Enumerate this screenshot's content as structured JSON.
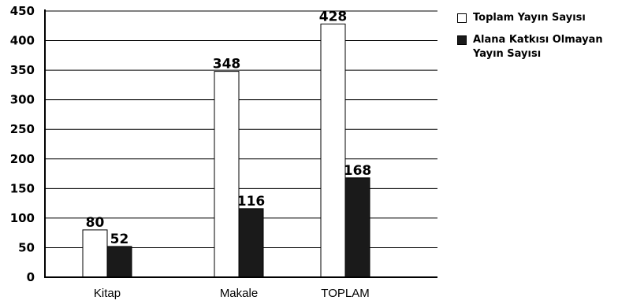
{
  "chart_data": {
    "type": "bar",
    "categories": [
      "Kitap",
      "Makale",
      "TOPLAM"
    ],
    "series": [
      {
        "name": "Toplam Yayın Sayısı",
        "values": [
          80,
          348,
          428
        ],
        "color": "#ffffff"
      },
      {
        "name": "Alana Katkısı Olmayan Yayın Sayısı",
        "values": [
          52,
          116,
          168
        ],
        "color": "#1a1a1a"
      }
    ],
    "data_labels": [
      [
        "80",
        "348",
        "428"
      ],
      [
        "52",
        "116",
        "168"
      ]
    ],
    "yticks": [
      0,
      50,
      100,
      150,
      200,
      250,
      300,
      350,
      400,
      450
    ],
    "ylim": [
      0,
      450
    ],
    "grid": true,
    "legend_position": "right",
    "title": "",
    "xlabel": "",
    "ylabel": ""
  },
  "legend": {
    "item1": "Toplam Yayın Sayısı",
    "item2": "Alana Katkısı Olmayan Yayın Sayısı"
  }
}
